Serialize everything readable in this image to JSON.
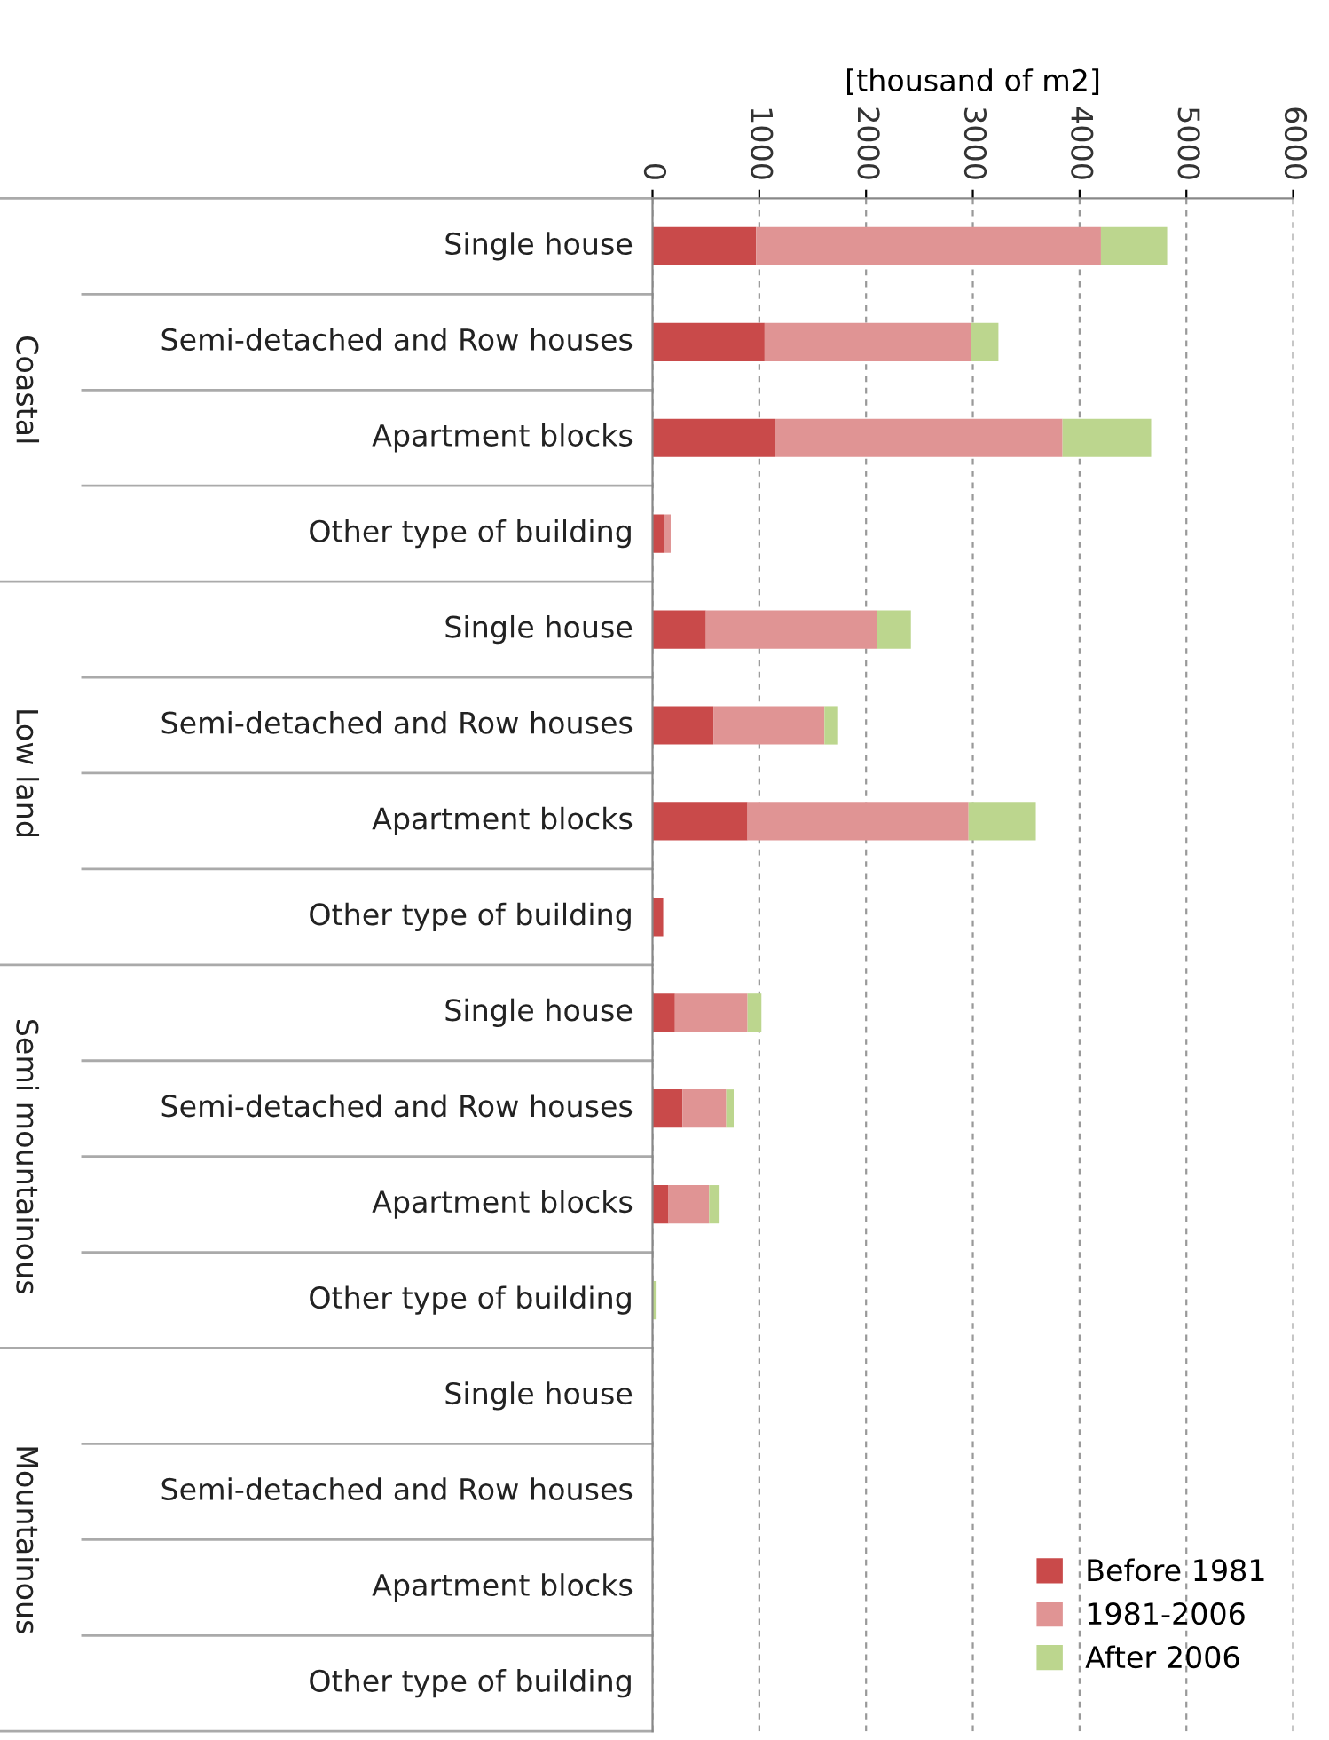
{
  "chart_data": {
    "type": "bar",
    "orientation": "horizontal",
    "stacked": true,
    "xlabel": "[thousand of m2]",
    "categories": [
      "Single house",
      "Semi-detached and Row houses",
      "Apartment blocks",
      "Other type of building",
      "Single house",
      "Semi-detached and Row houses",
      "Apartment blocks",
      "Other type of building",
      "Single house",
      "Semi-detached and Row houses",
      "Apartment blocks",
      "Other type of building",
      "Single house",
      "Semi-detached and Row houses",
      "Apartment blocks",
      "Other type of building"
    ],
    "series": [
      {
        "name": "Before 1981",
        "color": "#c94a4a",
        "values": [
          970,
          1050,
          1150,
          110,
          500,
          570,
          890,
          100,
          210,
          280,
          150,
          0,
          0,
          0,
          0,
          0
        ]
      },
      {
        "name": "1981-2006",
        "color": "#e09494",
        "values": [
          3230,
          1930,
          2690,
          60,
          1600,
          1040,
          2070,
          0,
          680,
          410,
          380,
          0,
          0,
          0,
          0,
          0
        ]
      },
      {
        "name": "After 2006",
        "color": "#bcd68e",
        "values": [
          620,
          260,
          830,
          0,
          320,
          120,
          630,
          0,
          130,
          70,
          90,
          30,
          0,
          0,
          0,
          0
        ]
      }
    ],
    "annotations": [
      "Coastal",
      "Low land",
      "Semi mountainous",
      "Mountainous"
    ],
    "xlim": [
      0,
      6000
    ],
    "xticks": [
      0,
      1000,
      2000,
      3000,
      4000,
      5000,
      6000
    ],
    "grid": "x",
    "legend": "right"
  }
}
